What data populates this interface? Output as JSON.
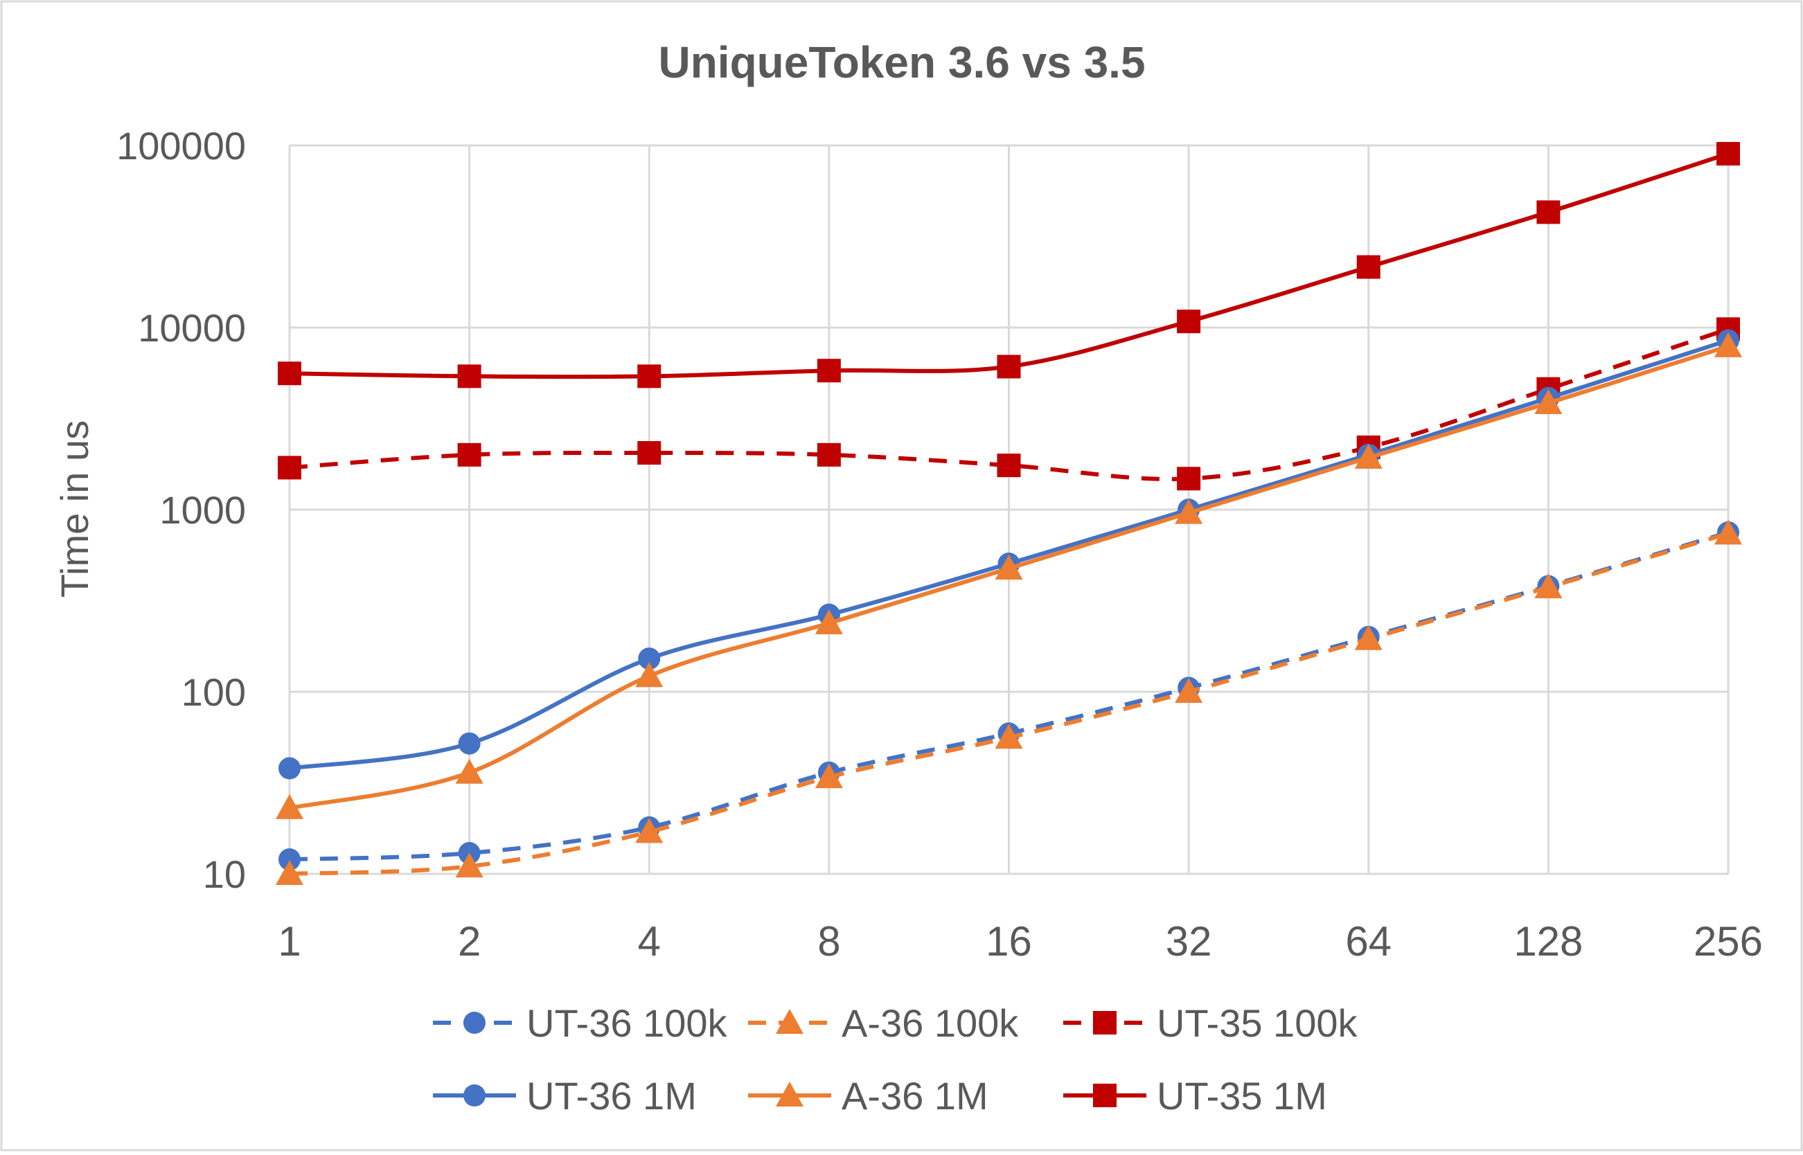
{
  "chart_data": {
    "type": "line",
    "title": "UniqueToken 3.6 vs 3.5",
    "xlabel": "",
    "ylabel": "Time in us",
    "categories": [
      "1",
      "2",
      "4",
      "8",
      "16",
      "32",
      "64",
      "128",
      "256"
    ],
    "yscale": "log",
    "ylim": [
      10,
      100000
    ],
    "yticks": [
      "10",
      "100",
      "1000",
      "10000",
      "100000"
    ],
    "grid": true,
    "legend_position": "bottom",
    "series": [
      {
        "name": "UT-36 100k",
        "color": "#4472C4",
        "dash": "dashed",
        "marker": "circle",
        "values": [
          12,
          13,
          18,
          36,
          59,
          105,
          200,
          380,
          750
        ]
      },
      {
        "name": "A-36 100k",
        "color": "#ED7D31",
        "dash": "dashed",
        "marker": "triangle",
        "values": [
          10,
          11,
          17,
          34,
          56,
          100,
          195,
          375,
          740
        ]
      },
      {
        "name": "UT-35 100k",
        "color": "#C00000",
        "dash": "dashed",
        "marker": "square",
        "values": [
          1700,
          2000,
          2050,
          2000,
          1750,
          1480,
          2200,
          4600,
          9800
        ]
      },
      {
        "name": "UT-36 1M",
        "color": "#4472C4",
        "dash": "solid",
        "marker": "circle",
        "values": [
          38,
          52,
          152,
          265,
          505,
          1000,
          2000,
          4100,
          8500
        ]
      },
      {
        "name": "A-36 1M",
        "color": "#ED7D31",
        "dash": "solid",
        "marker": "triangle",
        "values": [
          23,
          36,
          122,
          238,
          475,
          960,
          1930,
          3850,
          7900
        ]
      },
      {
        "name": "UT-35 1M",
        "color": "#C00000",
        "dash": "solid",
        "marker": "square",
        "values": [
          5600,
          5400,
          5400,
          5800,
          6100,
          10800,
          21500,
          43000,
          90000
        ]
      }
    ]
  }
}
